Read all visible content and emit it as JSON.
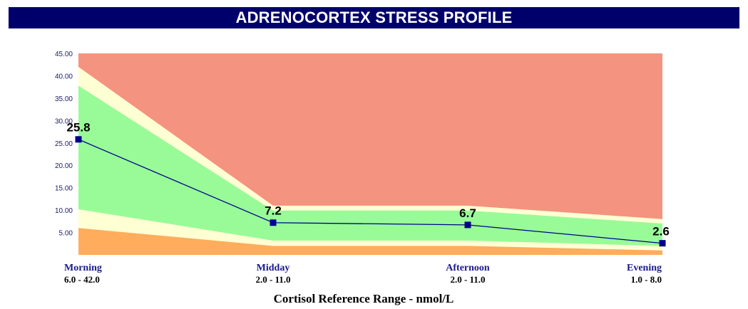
{
  "header": {
    "title": "ADRENOCORTEX STRESS PROFILE"
  },
  "chart_data": {
    "type": "line",
    "categories": [
      "Morning",
      "Midday",
      "Afternoon",
      "Evening"
    ],
    "reference_ranges": [
      "6.0 - 42.0",
      "2.0 - 11.0",
      "2.0 - 11.0",
      "1.0 - 8.0"
    ],
    "series": [
      {
        "name": "",
        "values": [
          25.8,
          7.2,
          6.7,
          2.6
        ],
        "color": "#00008b"
      }
    ],
    "data_labels": [
      "25.8",
      "7.2",
      "6.7",
      "2.6"
    ],
    "bands": {
      "low": {
        "color": "#ffad5c",
        "values": [
          6.0,
          2.0,
          2.0,
          1.0
        ]
      },
      "low_margin": {
        "color": "#ffffd4",
        "values": [
          10.2,
          3.2,
          3.2,
          2.0
        ]
      },
      "normal": {
        "color": "#98fb98",
        "values": [
          37.8,
          9.9,
          9.9,
          7.0
        ]
      },
      "high_margin": {
        "color": "#ffffd4",
        "values": [
          42.0,
          11.0,
          11.0,
          8.0
        ]
      },
      "high": {
        "color": "#f4937f",
        "values": [
          45.0,
          45.0,
          45.0,
          45.0
        ]
      }
    },
    "ylim": [
      0,
      45
    ],
    "yticks": [
      "5.00",
      "10.00",
      "15.00",
      "20.00",
      "25.00",
      "30.00",
      "35.00",
      "40.00",
      "45.00"
    ],
    "ytick_values": [
      5,
      10,
      15,
      20,
      25,
      30,
      35,
      40,
      45
    ],
    "xlabel": "Cortisol Reference Range - nmol/L",
    "ylabel": ""
  }
}
